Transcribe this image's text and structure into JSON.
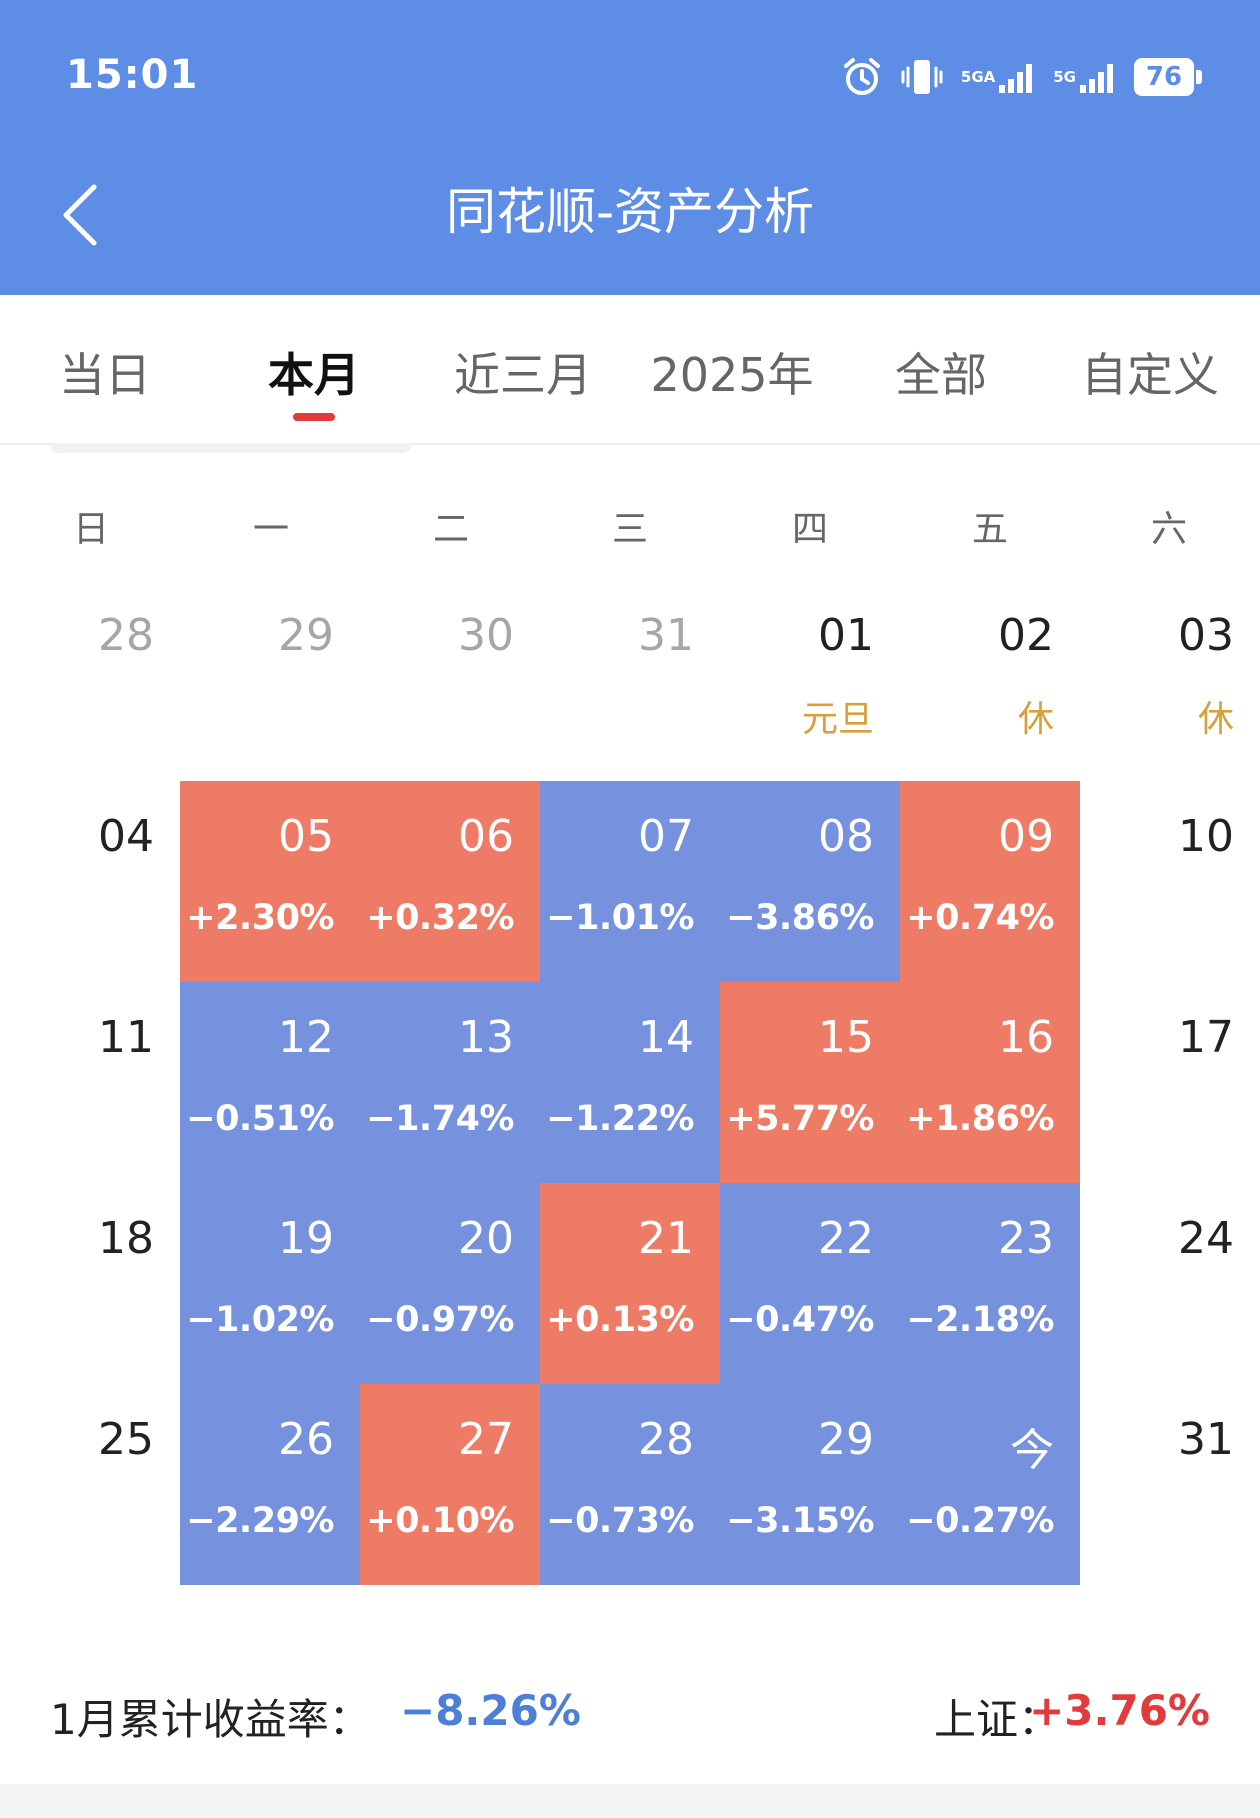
{
  "status_bar": {
    "time": "15:01",
    "net1": "5GA",
    "net2": "5G",
    "battery": "76"
  },
  "header": {
    "title": "同花顺-资产分析"
  },
  "tabs": [
    {
      "label": "当日",
      "active": false
    },
    {
      "label": "本月",
      "active": true
    },
    {
      "label": "近三月",
      "active": false
    },
    {
      "label": "2025年",
      "active": false
    },
    {
      "label": "全部",
      "active": false
    },
    {
      "label": "自定义",
      "active": false
    }
  ],
  "weekdays": [
    "日",
    "一",
    "二",
    "三",
    "四",
    "五",
    "六"
  ],
  "calendar": {
    "weeks": [
      [
        {
          "day": "28",
          "type": "other"
        },
        {
          "day": "29",
          "type": "other"
        },
        {
          "day": "30",
          "type": "other"
        },
        {
          "day": "31",
          "type": "other"
        },
        {
          "day": "01",
          "type": "normal",
          "note": "元旦"
        },
        {
          "day": "02",
          "type": "normal",
          "note": "休"
        },
        {
          "day": "03",
          "type": "normal",
          "note": "休"
        }
      ],
      [
        {
          "day": "04",
          "type": "normal"
        },
        {
          "day": "05",
          "type": "up",
          "pct": "+2.30%"
        },
        {
          "day": "06",
          "type": "up",
          "pct": "+0.32%"
        },
        {
          "day": "07",
          "type": "down",
          "pct": "−1.01%"
        },
        {
          "day": "08",
          "type": "down",
          "pct": "−3.86%"
        },
        {
          "day": "09",
          "type": "up",
          "pct": "+0.74%"
        },
        {
          "day": "10",
          "type": "normal"
        }
      ],
      [
        {
          "day": "11",
          "type": "normal"
        },
        {
          "day": "12",
          "type": "down",
          "pct": "−0.51%"
        },
        {
          "day": "13",
          "type": "down",
          "pct": "−1.74%"
        },
        {
          "day": "14",
          "type": "down",
          "pct": "−1.22%"
        },
        {
          "day": "15",
          "type": "up",
          "pct": "+5.77%"
        },
        {
          "day": "16",
          "type": "up",
          "pct": "+1.86%"
        },
        {
          "day": "17",
          "type": "normal"
        }
      ],
      [
        {
          "day": "18",
          "type": "normal"
        },
        {
          "day": "19",
          "type": "down",
          "pct": "−1.02%"
        },
        {
          "day": "20",
          "type": "down",
          "pct": "−0.97%"
        },
        {
          "day": "21",
          "type": "up",
          "pct": "+0.13%"
        },
        {
          "day": "22",
          "type": "down",
          "pct": "−0.47%"
        },
        {
          "day": "23",
          "type": "down",
          "pct": "−2.18%"
        },
        {
          "day": "24",
          "type": "normal"
        }
      ],
      [
        {
          "day": "25",
          "type": "normal"
        },
        {
          "day": "26",
          "type": "down",
          "pct": "−2.29%"
        },
        {
          "day": "27",
          "type": "up",
          "pct": "+0.10%"
        },
        {
          "day": "28",
          "type": "down",
          "pct": "−0.73%"
        },
        {
          "day": "29",
          "type": "down",
          "pct": "−3.15%"
        },
        {
          "day": "今",
          "type": "down",
          "pct": "−0.27%"
        },
        {
          "day": "31",
          "type": "normal"
        }
      ]
    ]
  },
  "summary": {
    "label": "1月累计收益率：",
    "value": "−8.26%",
    "index_label": "上证：",
    "index_value": "+3.76%"
  },
  "colors": {
    "header": "#5d8de5",
    "up": "#ee7b66",
    "down": "#7692de",
    "holiday": "#d6a13c",
    "indicator": "#e23b3b"
  }
}
